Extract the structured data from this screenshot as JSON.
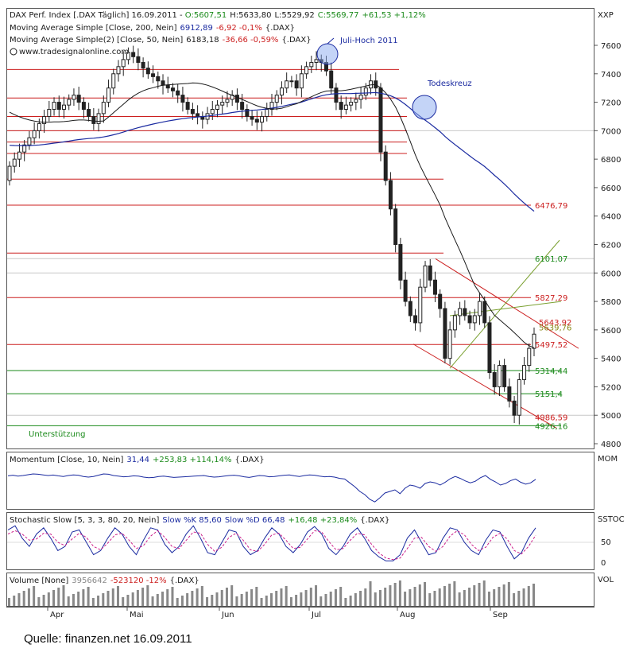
{
  "header": {
    "main_prefix": "DAX Perf. Index [.DAX  Täglich] 16.09.2011 - ",
    "open": "O:5607,51",
    "high": "H:5633,80",
    "low": "L:5529,92",
    "close": "C:5569,77",
    "change": "+61,53 +1,12%",
    "ma200_prefix": "Moving Average Simple [Close, 200, Nein]",
    "ma200_value": "6912,89",
    "ma200_change": "-6,92 -0,1%",
    "ma200_suffix": "{.DAX}",
    "ma50_prefix": "Moving Average Simple(2) [Close, 50, Nein]",
    "ma50_value": "6183,18",
    "ma50_change": "-36,66 -0,59%",
    "ma50_suffix": "{.DAX}",
    "website": "www.tradesignalonline.com"
  },
  "annotations": {
    "juli_hoch": "Juli-Hoch 2011",
    "todeskreuz": "Todeskreuz",
    "unterstuetzung": "Unterstützung"
  },
  "panels": {
    "main_label": "XXP",
    "momentum_label": "MOM",
    "momentum_title_prefix": "Momentum [Close, 10, Nein]",
    "momentum_value": "31,44",
    "momentum_change": "+253,83 +114,14%",
    "momentum_suffix": "{.DAX}",
    "stoch_label": "SSTOC",
    "stoch_title_prefix": "Stochastic Slow [5, 3, 3, 80, 20, Nein]",
    "stoch_k": "Slow %K 85,60",
    "stoch_d": "Slow %D 66,48",
    "stoch_change": "+16,48 +23,84%",
    "stoch_suffix": "{.DAX}",
    "stoch_ticks": [
      "50",
      "0"
    ],
    "volume_label": "VOL",
    "volume_title_prefix": "Volume [None]",
    "volume_value": "3956642",
    "volume_change": "-523120 -12%",
    "volume_suffix": "{.DAX}"
  },
  "source": "Quelle: finanzen.net  16.09.2011",
  "colors": {
    "candle_up": "#1a8a1a",
    "candle_down": "#cc1f1f",
    "resistance": "#cc1f1f",
    "support": "#1a8a1a",
    "ma200": "#1a2aa0",
    "ma50": "#1a1a1a",
    "trend_green": "#7aa030",
    "indicator": "#1a2aa0",
    "indicator_d": "#cc1f8a",
    "volume": "#888888"
  },
  "chart_data": {
    "type": "candlestick",
    "x_months": [
      "Apr",
      "Mai",
      "Jun",
      "Jul",
      "Aug",
      "Sep"
    ],
    "y_ticks": [
      7600,
      7400,
      7200,
      7000,
      6800,
      6600,
      6400,
      6200,
      6000,
      5800,
      5600,
      5400,
      5200,
      5000,
      4800
    ],
    "ylim": [
      4800,
      7650
    ],
    "closes": [
      6750,
      6800,
      6850,
      6900,
      6950,
      7000,
      7050,
      7100,
      7150,
      7200,
      7150,
      7180,
      7220,
      7250,
      7200,
      7150,
      7100,
      7050,
      7120,
      7200,
      7300,
      7400,
      7450,
      7500,
      7550,
      7520,
      7480,
      7440,
      7400,
      7380,
      7350,
      7320,
      7300,
      7280,
      7250,
      7200,
      7150,
      7120,
      7100,
      7080,
      7120,
      7150,
      7180,
      7200,
      7220,
      7250,
      7200,
      7150,
      7100,
      7080,
      7060,
      7100,
      7150,
      7200,
      7250,
      7300,
      7350,
      7350,
      7300,
      7400,
      7450,
      7480,
      7500,
      7480,
      7420,
      7300,
      7200,
      7150,
      7180,
      7200,
      7220,
      7250,
      7300,
      7350,
      7300,
      6850,
      6650,
      6450,
      6200,
      5950,
      5800,
      5700,
      5650,
      5900,
      6050,
      5950,
      5850,
      5750,
      5400,
      5600,
      5700,
      5750,
      5700,
      5650,
      5700,
      5800,
      5650,
      5300,
      5200,
      5350,
      5200,
      5100,
      5000,
      5250,
      5350,
      5470,
      5570
    ],
    "levels_red": [
      {
        "value": 7430,
        "end": "jul"
      },
      {
        "value": 7230,
        "end": "aug"
      },
      {
        "value": 7100,
        "end": "aug"
      },
      {
        "value": 7000,
        "end": "aug"
      },
      {
        "value": 6920,
        "end": "aug"
      },
      {
        "value": 6840,
        "end": "aug"
      },
      {
        "value": 6660,
        "end": "sep"
      },
      {
        "value": 6476.79,
        "label": "6476,79",
        "end": "full"
      },
      {
        "value": 6140,
        "end": "sep"
      },
      {
        "value": 5827.29,
        "label": "5827,29",
        "end": "full"
      },
      {
        "value": 5497.52,
        "label": "5497,52",
        "end": "full"
      },
      {
        "value": 4986.59,
        "label": "4986,59",
        "end": "none"
      }
    ],
    "levels_green": [
      {
        "value": 6101.07,
        "label": "6101,07",
        "gray": true
      },
      {
        "value": 5314.44,
        "label": "5314,44"
      },
      {
        "value": 5151.4,
        "label": "5151,4"
      },
      {
        "value": 4926.16,
        "label": "4926,16"
      }
    ],
    "small_labels": [
      {
        "value": 5643.92,
        "label": "5643,92",
        "color": "red"
      },
      {
        "value": 5639.76,
        "label": "5639,76",
        "color": "olive"
      }
    ],
    "momentum": [
      140,
      160,
      130,
      150,
      175,
      200,
      190,
      170,
      150,
      165,
      140,
      120,
      150,
      170,
      160,
      120,
      100,
      120,
      160,
      200,
      190,
      150,
      130,
      110,
      120,
      140,
      130,
      100,
      80,
      90,
      120,
      130,
      110,
      90,
      100,
      110,
      120,
      130,
      140,
      150,
      120,
      100,
      110,
      130,
      150,
      160,
      140,
      110,
      90,
      120,
      150,
      140,
      110,
      120,
      140,
      160,
      170,
      140,
      120,
      150,
      170,
      160,
      130,
      110,
      120,
      100,
      60,
      40,
      -80,
      -200,
      -350,
      -450,
      -600,
      -680,
      -550,
      -400,
      -350,
      -300,
      -420,
      -250,
      -150,
      -180,
      -250,
      -100,
      -50,
      -80,
      -150,
      -60,
      50,
      120,
      60,
      -20,
      -80,
      -30,
      80,
      150,
      30,
      -50,
      -150,
      -100,
      -10,
      40,
      -60,
      -120,
      -80,
      30
    ],
    "stoch_k": [
      80,
      90,
      60,
      40,
      70,
      85,
      60,
      30,
      40,
      75,
      80,
      50,
      20,
      30,
      60,
      85,
      70,
      40,
      20,
      55,
      85,
      80,
      45,
      25,
      40,
      70,
      90,
      60,
      25,
      20,
      50,
      80,
      75,
      40,
      20,
      30,
      60,
      85,
      70,
      40,
      25,
      45,
      75,
      88,
      70,
      35,
      20,
      40,
      70,
      85,
      60,
      30,
      15,
      5,
      5,
      20,
      60,
      80,
      50,
      20,
      25,
      60,
      85,
      80,
      50,
      30,
      20,
      55,
      80,
      75,
      40,
      10,
      25,
      60,
      85
    ],
    "stoch_d": [
      70,
      78,
      70,
      55,
      58,
      72,
      70,
      50,
      42,
      58,
      72,
      62,
      40,
      32,
      48,
      68,
      72,
      55,
      35,
      42,
      65,
      78,
      62,
      40,
      35,
      55,
      75,
      72,
      45,
      28,
      38,
      62,
      72,
      55,
      32,
      28,
      45,
      68,
      72,
      55,
      35,
      38,
      58,
      78,
      75,
      52,
      32,
      35,
      55,
      72,
      68,
      45,
      25,
      12,
      8,
      12,
      35,
      60,
      62,
      40,
      28,
      40,
      65,
      78,
      68,
      45,
      30,
      38,
      62,
      72,
      58,
      30,
      22,
      40,
      67
    ]
  }
}
